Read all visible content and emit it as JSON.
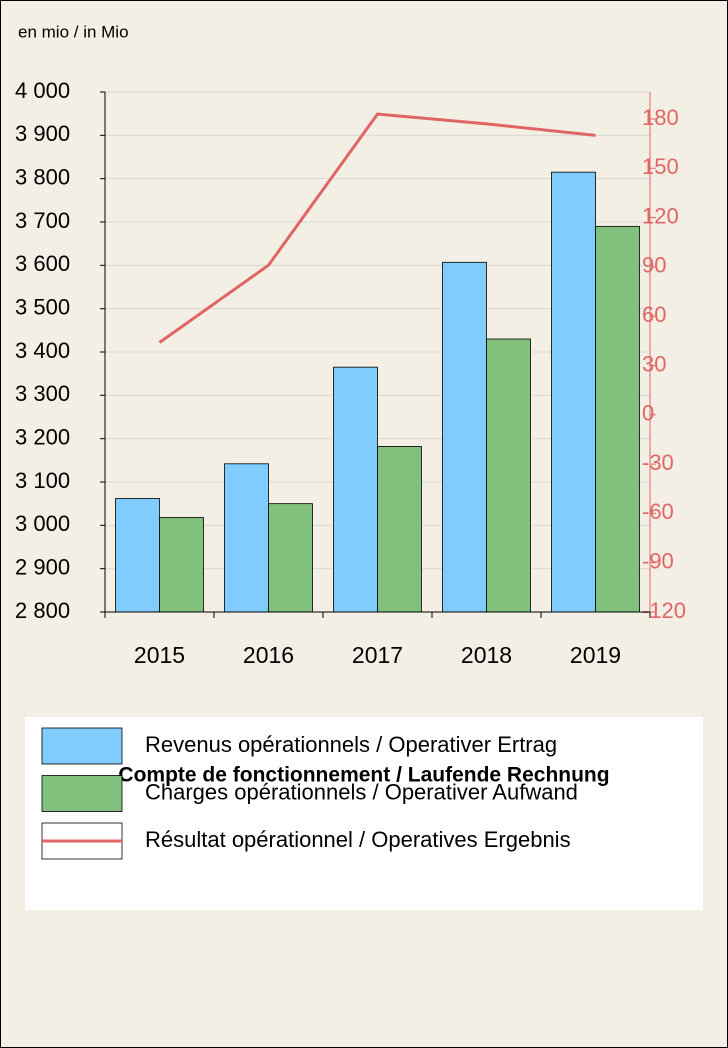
{
  "chart_data": {
    "type": "bar",
    "unit_label": "en mio / in Mio",
    "title": "Compte de fonctionnement / Laufende Rechnung",
    "categories": [
      "2015",
      "2016",
      "2017",
      "2018",
      "2019"
    ],
    "series": [
      {
        "name": "Revenus opérationnels / Operativer Ertrag",
        "color": "#80ccff",
        "type": "bar",
        "values": [
          3062,
          3142,
          3365,
          3607,
          3815
        ]
      },
      {
        "name": "Charges opérationnels / Operativer Aufwand",
        "color": "#82c07e",
        "type": "bar",
        "values": [
          3018,
          3050,
          3182,
          3430,
          3690
        ]
      },
      {
        "name": "Résultat opérationnel / Operatives Ergebnis",
        "color": "#e06666",
        "type": "line",
        "axis": "y2",
        "values": [
          44,
          91,
          183,
          177,
          170
        ]
      }
    ],
    "ylim": [
      2800,
      4000
    ],
    "yticks": [
      {
        "value": 2800,
        "label": "2 800"
      },
      {
        "value": 2900,
        "label": "2 900"
      },
      {
        "value": 3000,
        "label": "3 000"
      },
      {
        "value": 3100,
        "label": "3 100"
      },
      {
        "value": 3200,
        "label": "3 200"
      },
      {
        "value": 3300,
        "label": "3 300"
      },
      {
        "value": 3400,
        "label": "3 400"
      },
      {
        "value": 3500,
        "label": "3 500"
      },
      {
        "value": 3600,
        "label": "3 600"
      },
      {
        "value": 3700,
        "label": "3 700"
      },
      {
        "value": 3800,
        "label": "3 800"
      },
      {
        "value": 3900,
        "label": "3 900"
      },
      {
        "value": 4000,
        "label": "4 000"
      }
    ],
    "y2lim": [
      -120,
      196.4
    ],
    "y2ticks": [
      -120,
      -90,
      -60,
      -30,
      0,
      30,
      60,
      90,
      120,
      150,
      180
    ],
    "y2_color": "#e06666",
    "grid": true
  }
}
